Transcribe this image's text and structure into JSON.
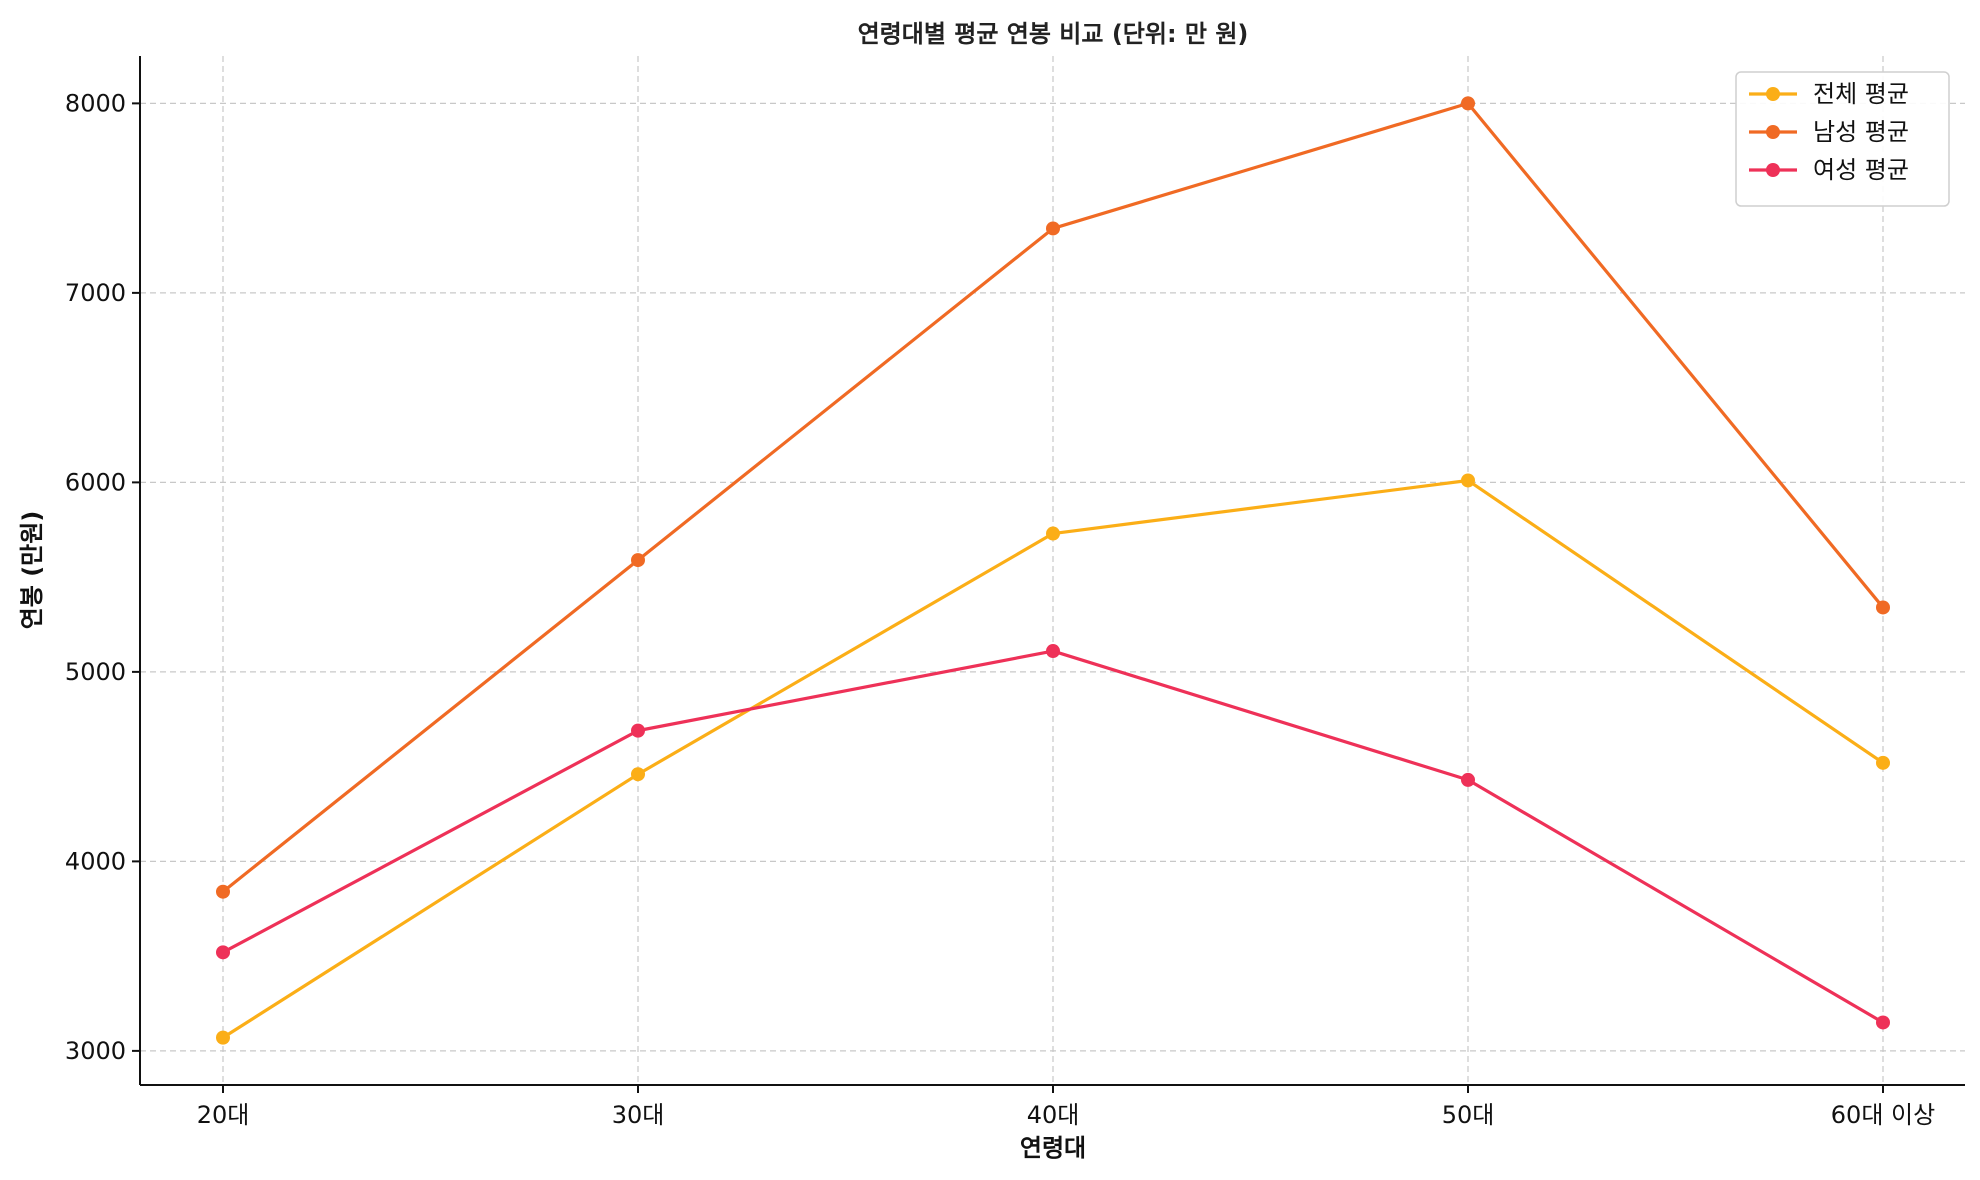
{
  "chart_data": {
    "type": "line",
    "title": "연령대별 평균 연봉 비교 (단위: 만 원)",
    "xlabel": "연령대",
    "ylabel": "연봉 (만원)",
    "categories": [
      "20대",
      "30대",
      "40대",
      "50대",
      "60대 이상"
    ],
    "ylim": [
      2820,
      8250
    ],
    "yticks": [
      3000,
      4000,
      5000,
      6000,
      7000,
      8000
    ],
    "grid": true,
    "legend_position": "top-right",
    "series": [
      {
        "name": "전체 평균",
        "color": "#FBAE17",
        "values": [
          3070,
          4460,
          5730,
          6010,
          4520
        ]
      },
      {
        "name": "남성 평균",
        "color": "#F06A24",
        "values": [
          3840,
          5590,
          7340,
          8000,
          5340
        ]
      },
      {
        "name": "여성 평균",
        "color": "#EE3158",
        "values": [
          3520,
          4690,
          5110,
          4430,
          3150
        ]
      }
    ]
  }
}
